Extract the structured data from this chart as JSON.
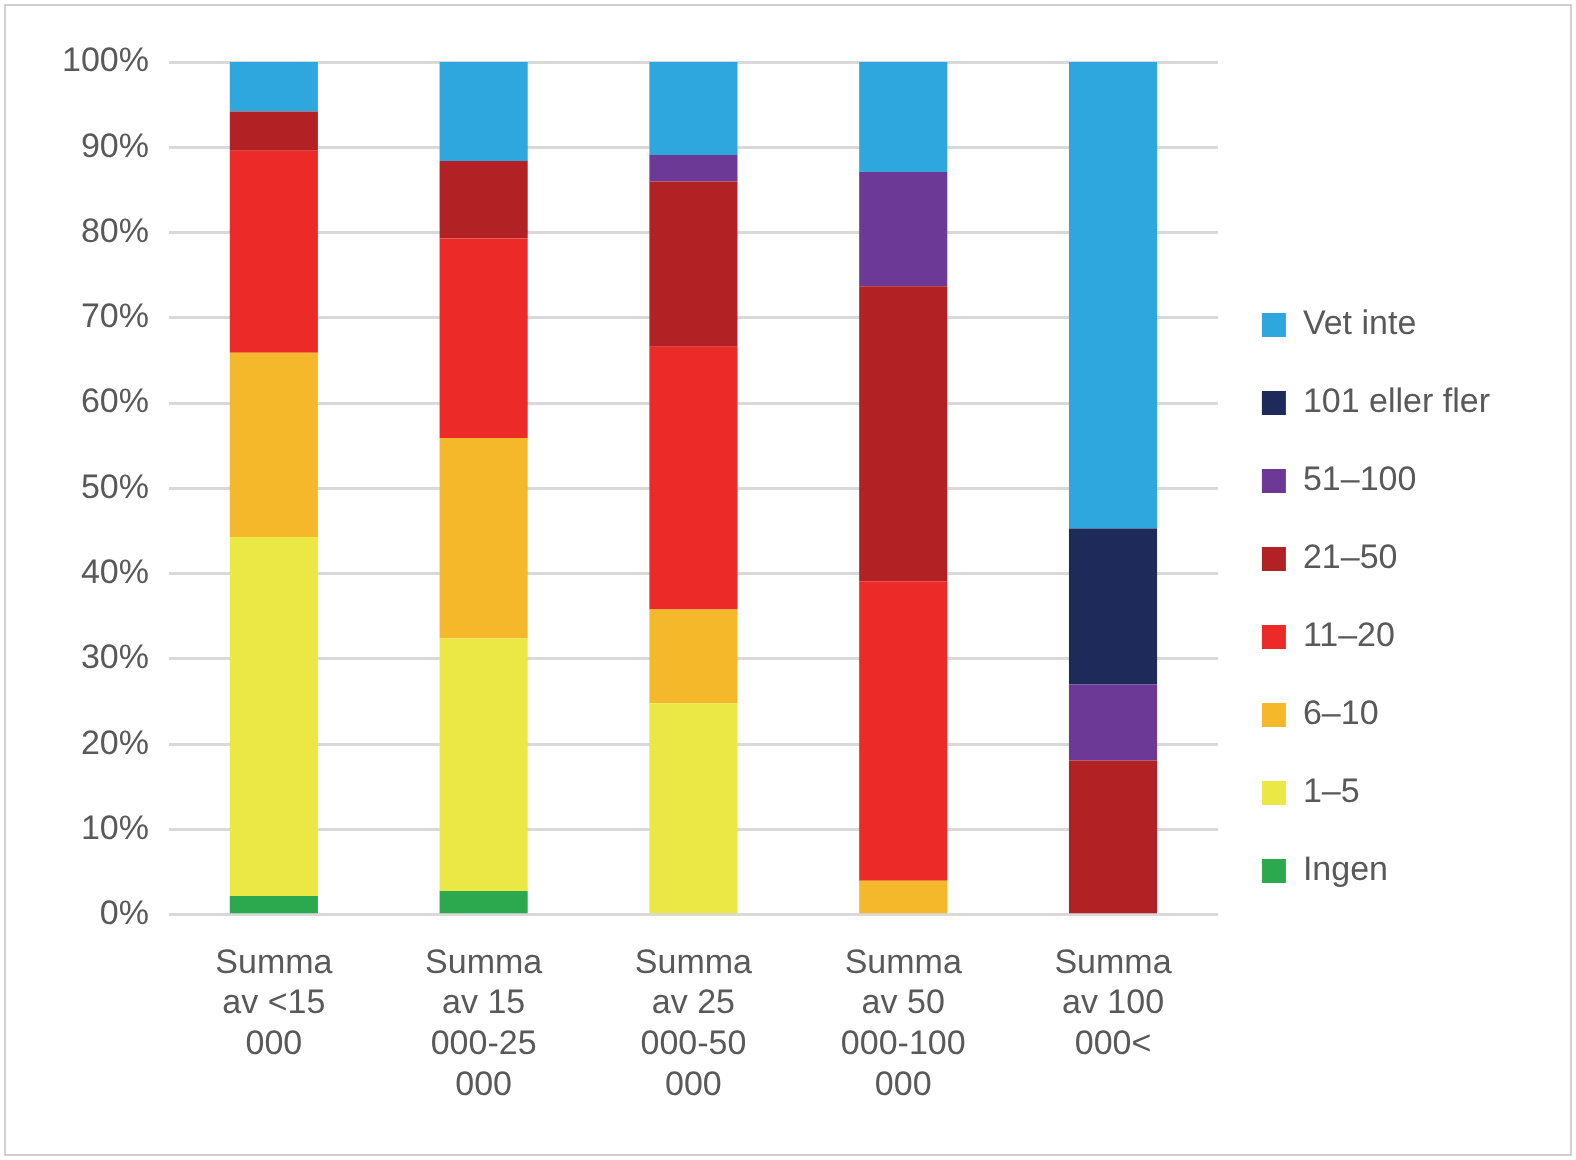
{
  "chart_data": {
    "type": "bar",
    "stacked": true,
    "legend": "right",
    "grid": "y",
    "categories": [
      "Summa av <15 000",
      "Summa av 15 000-25 000",
      "Summa av 25 000-50 000",
      "Summa av 50 000-100 000",
      "Summa av 100 000<"
    ],
    "ylim": [
      0,
      100
    ],
    "yticks": [
      {
        "value": 0,
        "label": "0%"
      },
      {
        "value": 10,
        "label": "10%"
      },
      {
        "value": 20,
        "label": "20%"
      },
      {
        "value": 30,
        "label": "30%"
      },
      {
        "value": 40,
        "label": "40%"
      },
      {
        "value": 50,
        "label": "50%"
      },
      {
        "value": 60,
        "label": "60%"
      },
      {
        "value": 70,
        "label": "70%"
      },
      {
        "value": 80,
        "label": "80%"
      },
      {
        "value": 90,
        "label": "90%"
      },
      {
        "value": 100,
        "label": "100%"
      }
    ],
    "series": [
      {
        "name": "Ingen",
        "color": "#2ca84f",
        "values": [
          2.2,
          2.8,
          0,
          0,
          0
        ]
      },
      {
        "name": "1–5",
        "color": "#ebe845",
        "values": [
          42.1,
          29.6,
          24.8,
          0,
          0
        ]
      },
      {
        "name": "6–10",
        "color": "#f5b82a",
        "values": [
          21.6,
          23.5,
          11.0,
          4.0,
          0
        ]
      },
      {
        "name": "11–20",
        "color": "#ec2a27",
        "values": [
          23.7,
          23.4,
          30.8,
          35.1,
          0
        ]
      },
      {
        "name": "21–50",
        "color": "#b22224",
        "values": [
          4.6,
          9.1,
          19.4,
          34.6,
          18.1
        ]
      },
      {
        "name": "51–100",
        "color": "#6c3a96",
        "values": [
          0,
          0,
          3.1,
          13.4,
          8.9
        ]
      },
      {
        "name": "101 eller fler",
        "color": "#1e2a5a",
        "values": [
          0,
          0,
          0,
          0,
          18.3
        ]
      },
      {
        "name": "Vet inte",
        "color": "#2ea6de",
        "values": [
          5.8,
          11.6,
          10.9,
          12.9,
          54.7
        ]
      }
    ]
  }
}
